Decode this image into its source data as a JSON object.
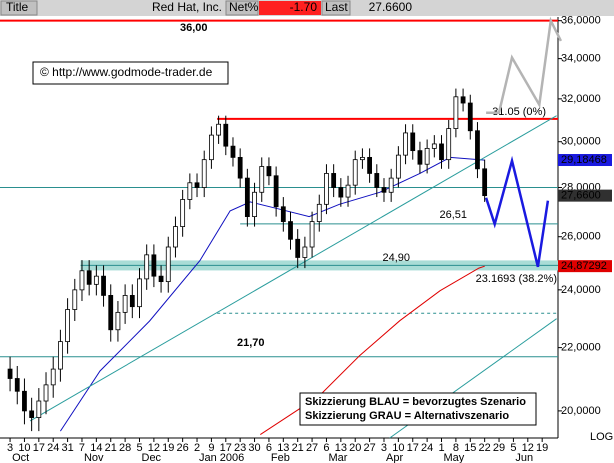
{
  "header": {
    "title_label": "Title",
    "name": "Red Hat, Inc.",
    "net_label": "Net%",
    "net": "-1.70",
    "last_label": "Last",
    "last": "27.6600"
  },
  "chart_data": {
    "type": "candlestick",
    "log_scale": true,
    "up_color": "#ffffff",
    "down_color": "#000000",
    "x": [
      0,
      0.5,
      1,
      1.5,
      2,
      2.5,
      3,
      3.5,
      4,
      4.5,
      5,
      5.5,
      6,
      6.5,
      7,
      7.5,
      8,
      8.5,
      9,
      9.5,
      10,
      10.5,
      11,
      11.5,
      12,
      12.5,
      13,
      13.5,
      14,
      14.5,
      15,
      15.5,
      16,
      16.5,
      17,
      17.5,
      18,
      18.5,
      19,
      19.5,
      20,
      20.5,
      21,
      21.5,
      22,
      22.5,
      23,
      23.5,
      24,
      24.5,
      25,
      25.5,
      26,
      26.5,
      27,
      27.5,
      28,
      28.5,
      29,
      29.5,
      30,
      30.5,
      31,
      31.5,
      32,
      32.5,
      33
    ],
    "open": [
      21.3,
      21.0,
      20.6,
      20.0,
      19.8,
      20.3,
      20.8,
      21.3,
      22.2,
      23.3,
      24.0,
      24.7,
      24.2,
      24.5,
      23.8,
      22.6,
      23.2,
      23.8,
      23.4,
      24.4,
      25.3,
      24.5,
      24.3,
      25.6,
      26.4,
      27.5,
      28.2,
      28.0,
      29.2,
      30.3,
      30.8,
      29.8,
      29.3,
      28.4,
      26.8,
      27.8,
      28.9,
      28.5,
      27.2,
      26.6,
      25.9,
      25.2,
      25.6,
      26.6,
      27.3,
      28.6,
      28.0,
      27.6,
      28.1,
      29.2,
      29.3,
      28.6,
      28.0,
      27.8,
      28.4,
      29.4,
      30.4,
      29.6,
      29.0,
      29.7,
      29.9,
      29.2,
      30.6,
      32.1,
      31.8,
      30.5,
      28.8
    ],
    "high": [
      21.7,
      21.4,
      21.0,
      20.4,
      20.7,
      21.2,
      21.7,
      22.6,
      23.7,
      24.4,
      25.1,
      25.1,
      24.9,
      24.9,
      24.2,
      23.6,
      24.2,
      24.2,
      24.8,
      25.7,
      25.7,
      24.9,
      26.0,
      26.8,
      27.9,
      28.6,
      28.6,
      29.6,
      30.7,
      31.2,
      31.2,
      30.2,
      29.7,
      28.8,
      28.2,
      29.3,
      29.3,
      28.9,
      27.6,
      27.0,
      26.3,
      26.0,
      27.0,
      27.7,
      29.0,
      29.0,
      28.4,
      28.5,
      29.6,
      29.7,
      29.7,
      29.0,
      28.4,
      28.8,
      29.8,
      30.8,
      30.8,
      30.0,
      30.1,
      30.3,
      30.3,
      31.0,
      32.5,
      32.5,
      32.2,
      30.9,
      29.2
    ],
    "low": [
      20.6,
      20.2,
      19.6,
      19.4,
      19.4,
      19.9,
      20.4,
      20.9,
      21.8,
      22.9,
      23.6,
      23.8,
      23.8,
      23.4,
      22.2,
      22.2,
      22.8,
      23.0,
      23.0,
      24.0,
      24.1,
      23.9,
      23.9,
      25.2,
      26.0,
      27.1,
      27.6,
      27.6,
      28.8,
      29.9,
      29.4,
      28.9,
      28.0,
      26.4,
      26.4,
      27.4,
      28.1,
      26.8,
      26.2,
      25.5,
      24.8,
      24.8,
      25.2,
      26.2,
      26.9,
      27.6,
      27.2,
      27.2,
      27.7,
      28.8,
      28.2,
      27.6,
      27.4,
      27.4,
      28.0,
      29.0,
      29.2,
      28.6,
      28.6,
      29.3,
      28.8,
      28.8,
      30.2,
      31.4,
      30.1,
      28.4,
      27.4
    ],
    "close": [
      21.0,
      20.6,
      20.0,
      19.8,
      20.3,
      20.8,
      21.3,
      22.2,
      23.3,
      24.0,
      24.7,
      24.2,
      24.5,
      23.8,
      22.6,
      23.2,
      23.8,
      23.4,
      24.4,
      25.3,
      24.5,
      24.3,
      25.6,
      26.4,
      27.5,
      28.2,
      28.0,
      29.2,
      30.3,
      30.8,
      29.8,
      29.3,
      28.4,
      26.8,
      27.8,
      28.9,
      28.5,
      27.2,
      26.6,
      25.9,
      25.2,
      25.6,
      26.6,
      27.3,
      28.6,
      28.0,
      27.6,
      28.1,
      29.2,
      29.3,
      28.6,
      28.0,
      27.8,
      28.4,
      29.4,
      30.4,
      29.6,
      29.0,
      29.7,
      29.9,
      29.2,
      30.6,
      32.1,
      31.8,
      30.5,
      28.8,
      27.66
    ],
    "xlim": [
      -0.7,
      38.1
    ],
    "ylim": [
      19.2,
      36.2
    ],
    "yticks": [
      {
        "value": 20,
        "label": "20,0000"
      },
      {
        "value": 22,
        "label": "22,0000"
      },
      {
        "value": 24,
        "label": "24,0000"
      },
      {
        "value": 26,
        "label": "26,0000"
      },
      {
        "value": 28,
        "label": "28,0000"
      },
      {
        "value": 30,
        "label": "30,0000"
      },
      {
        "value": 32,
        "label": "32,0000"
      },
      {
        "value": 34,
        "label": "34,0000"
      },
      {
        "value": 36,
        "label": "36,0000"
      }
    ],
    "xticks": [
      {
        "value": 0,
        "label": "3"
      },
      {
        "value": 1,
        "label": "10"
      },
      {
        "value": 2,
        "label": "17"
      },
      {
        "value": 3,
        "label": "24"
      },
      {
        "value": 4,
        "label": "31"
      },
      {
        "value": 5,
        "label": "7"
      },
      {
        "value": 6,
        "label": "14"
      },
      {
        "value": 7,
        "label": "21"
      },
      {
        "value": 8,
        "label": "28"
      },
      {
        "value": 9,
        "label": "5"
      },
      {
        "value": 10,
        "label": "12"
      },
      {
        "value": 11,
        "label": "19"
      },
      {
        "value": 12,
        "label": "26"
      },
      {
        "value": 13,
        "label": "2"
      },
      {
        "value": 14,
        "label": "9"
      },
      {
        "value": 15,
        "label": "17"
      },
      {
        "value": 16,
        "label": "23"
      },
      {
        "value": 17,
        "label": "30"
      },
      {
        "value": 18,
        "label": "6"
      },
      {
        "value": 19,
        "label": "13"
      },
      {
        "value": 20,
        "label": "21"
      },
      {
        "value": 21,
        "label": "27"
      },
      {
        "value": 22,
        "label": "6"
      },
      {
        "value": 23,
        "label": "13"
      },
      {
        "value": 24,
        "label": "20"
      },
      {
        "value": 25,
        "label": "27"
      },
      {
        "value": 26,
        "label": "3"
      },
      {
        "value": 27,
        "label": "10"
      },
      {
        "value": 28,
        "label": "17"
      },
      {
        "value": 29,
        "label": "24"
      },
      {
        "value": 30,
        "label": "1"
      },
      {
        "value": 31,
        "label": "8"
      },
      {
        "value": 32,
        "label": "15"
      },
      {
        "value": 33,
        "label": "22"
      },
      {
        "value": 34,
        "label": "29"
      },
      {
        "value": 35,
        "label": "5"
      },
      {
        "value": 36,
        "label": "12"
      },
      {
        "value": 37,
        "label": "19"
      }
    ],
    "months": [
      {
        "value": 0,
        "label": "Oct"
      },
      {
        "value": 5,
        "label": "Nov"
      },
      {
        "value": 9,
        "label": "Dec"
      },
      {
        "value": 13,
        "label": "Jan 2006"
      },
      {
        "value": 18,
        "label": "Feb"
      },
      {
        "value": 22,
        "label": "Mar"
      },
      {
        "value": 26,
        "label": "Apr"
      },
      {
        "value": 30,
        "label": "May"
      },
      {
        "value": 35,
        "label": "Jun"
      }
    ],
    "levels": [
      {
        "value": 36,
        "from": -0.7,
        "color": "#ff0000",
        "label": "36,00"
      },
      {
        "value": 31.05,
        "from": 14.4,
        "color": "#ff0000",
        "label": "31.05 (0%)"
      },
      {
        "value": 28,
        "from": -0.7,
        "color": "#2a8f8f"
      },
      {
        "value": 26.51,
        "from": 16,
        "color": "#2a8f8f",
        "label": "26,51"
      },
      {
        "value": 24.9,
        "from": 4.9,
        "color": "#2a8f8f",
        "label": "24,90",
        "band": true
      },
      {
        "value": 23.1693,
        "from": 14.4,
        "color": "#2a8f8f",
        "label": "23.1693 (38.2%)",
        "dashed": true
      },
      {
        "value": 21.7,
        "from": -0.7,
        "color": "#2a8f8f",
        "label": "21,70"
      }
    ],
    "overlays": [
      {
        "color": "#1010c0",
        "width": 1,
        "x": [
          3.5,
          6.25,
          9.7,
          13.2,
          15.3,
          16.7,
          18.75,
          20.8,
          22.9,
          25.7,
          28.5,
          30.6,
          33
        ],
        "values": [
          19.4,
          21.24,
          22.9,
          25.08,
          27.03,
          27.4,
          27.1,
          26.8,
          27.3,
          27.8,
          28.6,
          29.3,
          29.18
        ]
      },
      {
        "color": "#e00000",
        "width": 1,
        "x": [
          17.4,
          21.5,
          24.3,
          27.1,
          29.9,
          32.6,
          33
        ],
        "values": [
          19.3,
          20.46,
          21.73,
          22.91,
          23.97,
          24.8,
          24.87
        ]
      },
      {
        "color": "#2a9d9d",
        "width": 1,
        "x": [
          1.39,
          38.0
        ],
        "values": [
          19.7,
          31.2
        ]
      },
      {
        "color": "#2a9d9d",
        "width": 1,
        "x": [
          26.4,
          38.0
        ],
        "values": [
          19.2,
          22.98
        ]
      },
      {
        "color": "#1a1ae0",
        "width": 2.5,
        "x": [
          33.1,
          33.7,
          34.9,
          36.7,
          37.4
        ],
        "values": [
          27.57,
          26.5,
          29.15,
          24.85,
          27.45
        ]
      },
      {
        "color": "#b4b4b4",
        "width": 2.5,
        "x": [
          33.1,
          34.0,
          34.9,
          36.8,
          37.6,
          38.3
        ],
        "values": [
          31.34,
          31.34,
          34.05,
          31.72,
          36.0,
          34.92
        ]
      }
    ],
    "price_markers": [
      {
        "value": 29.18468,
        "label": "29,18468",
        "color": "#1a1ae0"
      },
      {
        "value": 27.66,
        "label": "27,6600",
        "color": "#303030"
      },
      {
        "value": 24.87292,
        "label": "24,87292",
        "color": "#e00000"
      }
    ],
    "copyright": "© http://www.godmode-trader.de",
    "notes": [
      "Skizzierung BLAU = bevorzugtes Szenario",
      "Skizzierung GRAU = Alternativszenario"
    ],
    "scale_label": "LOG"
  }
}
